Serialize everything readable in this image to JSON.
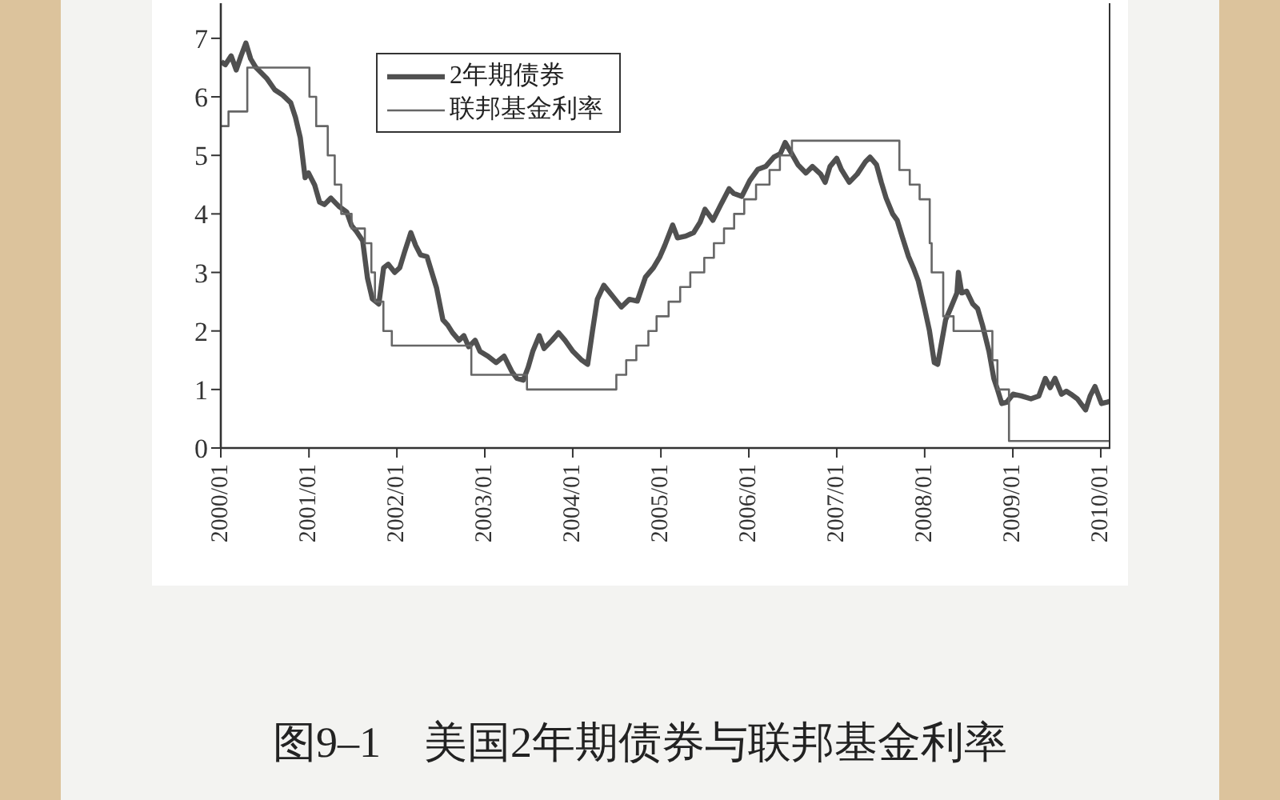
{
  "chart_data": {
    "type": "line",
    "title": "图9–1　美国2年期债券与联邦基金利率",
    "xlim": [
      "2000-01-01",
      "2010-02-10"
    ],
    "xticks": [
      {
        "value": "2000-01",
        "label": "2000/01"
      },
      {
        "value": "2001-01",
        "label": "2001/01"
      },
      {
        "value": "2002-01",
        "label": "2002/01"
      },
      {
        "value": "2003-01",
        "label": "2003/01"
      },
      {
        "value": "2004-01",
        "label": "2004/01"
      },
      {
        "value": "2005-01",
        "label": "2005/01"
      },
      {
        "value": "2006-01",
        "label": "2006/01"
      },
      {
        "value": "2007-01",
        "label": "2007/01"
      },
      {
        "value": "2008-01",
        "label": "2008/01"
      },
      {
        "value": "2009-01",
        "label": "2009/01"
      },
      {
        "value": "2010-01",
        "label": "2010/01"
      }
    ],
    "ylim": [
      0,
      7.6
    ],
    "yticks": [
      0,
      1,
      2,
      3,
      4,
      5,
      6,
      7
    ],
    "legend": "top left",
    "series": [
      {
        "name": "2年期债券",
        "color": "#505050",
        "x": [
          "2000-01-03",
          "2000-01-20",
          "2000-02-13",
          "2000-03-05",
          "2000-03-25",
          "2000-04-14",
          "2000-05-04",
          "2000-05-24",
          "2000-07-09",
          "2000-08-12",
          "2000-09-14",
          "2000-10-17",
          "2000-11-06",
          "2000-11-26",
          "2000-12-16",
          "2000-12-30",
          "2001-01-25",
          "2001-02-14",
          "2001-03-06",
          "2001-04-02",
          "2001-05-05",
          "2001-06-07",
          "2001-06-27",
          "2001-07-17",
          "2001-08-12",
          "2001-09-01",
          "2001-09-21",
          "2001-10-18",
          "2001-11-07",
          "2001-11-26",
          "2001-12-23",
          "2002-01-13",
          "2002-02-02",
          "2002-02-28",
          "2002-03-20",
          "2002-04-09",
          "2002-05-06",
          "2002-05-26",
          "2002-06-15",
          "2002-07-11",
          "2002-07-31",
          "2002-08-20",
          "2002-09-16",
          "2002-10-06",
          "2002-10-26",
          "2002-11-22",
          "2002-12-12",
          "2003-01-14",
          "2003-02-17",
          "2003-03-22",
          "2003-04-24",
          "2003-05-14",
          "2003-06-10",
          "2003-06-30",
          "2003-07-19",
          "2003-08-15",
          "2003-09-04",
          "2003-10-07",
          "2003-11-03",
          "2003-11-30",
          "2004-01-02",
          "2004-02-05",
          "2004-03-03",
          "2004-03-23",
          "2004-04-12",
          "2004-05-09",
          "2004-05-29",
          "2004-07-01",
          "2004-07-21",
          "2004-08-23",
          "2004-09-25",
          "2004-10-29",
          "2004-12-01",
          "2004-12-28",
          "2005-01-17",
          "2005-02-19",
          "2005-03-11",
          "2005-04-14",
          "2005-05-17",
          "2005-06-13",
          "2005-07-03",
          "2005-08-05",
          "2005-09-07",
          "2005-10-11",
          "2005-10-30",
          "2005-12-03",
          "2006-01-05",
          "2006-02-07",
          "2006-03-12",
          "2006-04-15",
          "2006-05-12",
          "2006-06-01",
          "2006-06-21",
          "2006-07-24",
          "2006-08-26",
          "2006-09-22",
          "2006-10-26",
          "2006-11-14",
          "2006-12-04",
          "2007-01-01",
          "2007-01-20",
          "2007-02-22",
          "2007-03-27",
          "2007-04-30",
          "2007-05-19",
          "2007-06-15",
          "2007-07-05",
          "2007-07-25",
          "2007-08-21",
          "2007-09-09",
          "2007-09-29",
          "2007-10-26",
          "2007-11-15",
          "2007-12-05",
          "2008-01-01",
          "2008-01-21",
          "2008-02-10",
          "2008-02-24",
          "2008-03-28",
          "2008-04-17",
          "2008-05-14",
          "2008-05-20",
          "2008-06-03",
          "2008-06-23",
          "2008-07-19",
          "2008-08-08",
          "2008-08-28",
          "2008-09-24",
          "2008-10-14",
          "2008-10-27",
          "2008-11-16",
          "2008-12-06",
          "2009-01-02",
          "2009-02-05",
          "2009-03-17",
          "2009-04-19",
          "2009-05-16",
          "2009-06-05",
          "2009-06-25",
          "2009-07-22",
          "2009-08-11",
          "2009-08-30",
          "2009-09-26",
          "2009-10-30",
          "2009-11-18",
          "2009-12-08",
          "2010-01-04",
          "2010-01-24",
          "2010-02-08"
        ],
        "values": [
          6.6,
          6.55,
          6.7,
          6.46,
          6.7,
          6.92,
          6.65,
          6.51,
          6.32,
          6.12,
          6.03,
          5.9,
          5.65,
          5.3,
          4.62,
          4.7,
          4.49,
          4.2,
          4.16,
          4.27,
          4.13,
          4.03,
          3.8,
          3.7,
          3.54,
          2.9,
          2.55,
          2.46,
          3.08,
          3.14,
          3.0,
          3.08,
          3.35,
          3.68,
          3.46,
          3.3,
          3.27,
          3.0,
          2.73,
          2.19,
          2.1,
          1.97,
          1.84,
          1.92,
          1.73,
          1.84,
          1.65,
          1.57,
          1.46,
          1.57,
          1.3,
          1.19,
          1.16,
          1.38,
          1.65,
          1.92,
          1.7,
          1.84,
          1.97,
          1.84,
          1.65,
          1.51,
          1.43,
          2.0,
          2.54,
          2.78,
          2.68,
          2.51,
          2.41,
          2.54,
          2.51,
          2.92,
          3.08,
          3.27,
          3.46,
          3.81,
          3.59,
          3.62,
          3.68,
          3.86,
          4.08,
          3.89,
          4.16,
          4.43,
          4.35,
          4.3,
          4.57,
          4.76,
          4.81,
          4.97,
          5.03,
          5.22,
          5.08,
          4.84,
          4.7,
          4.81,
          4.68,
          4.54,
          4.81,
          4.95,
          4.76,
          4.54,
          4.68,
          4.89,
          4.97,
          4.84,
          4.54,
          4.27,
          4.0,
          3.89,
          3.62,
          3.27,
          3.08,
          2.86,
          2.38,
          2.0,
          1.46,
          1.43,
          2.19,
          2.38,
          2.65,
          3.0,
          2.65,
          2.68,
          2.46,
          2.38,
          2.1,
          1.65,
          1.19,
          1.03,
          0.76,
          0.78,
          0.92,
          0.89,
          0.84,
          0.89,
          1.19,
          1.03,
          1.19,
          0.92,
          0.97,
          0.92,
          0.84,
          0.65,
          0.89,
          1.05,
          0.76,
          0.78,
          0.8
        ]
      },
      {
        "name": "联邦基金利率",
        "color": "#666666",
        "type": "step",
        "x": [
          "2000-01-01",
          "2000-02-02",
          "2000-04-20",
          "2001-01-03",
          "2001-01-31",
          "2001-03-20",
          "2001-04-18",
          "2001-05-15",
          "2001-06-27",
          "2001-08-21",
          "2001-09-17",
          "2001-10-02",
          "2001-11-06",
          "2001-12-11",
          "2002-11-06",
          "2003-06-25",
          "2004-06-30",
          "2004-08-10",
          "2004-09-21",
          "2004-11-10",
          "2004-12-14",
          "2005-02-02",
          "2005-03-22",
          "2005-05-03",
          "2005-06-30",
          "2005-08-09",
          "2005-09-20",
          "2005-11-01",
          "2005-12-13",
          "2006-01-31",
          "2006-03-28",
          "2006-05-10",
          "2006-06-29",
          "2007-09-18",
          "2007-10-31",
          "2007-12-11",
          "2008-01-22",
          "2008-01-30",
          "2008-03-18",
          "2008-04-30",
          "2008-10-08",
          "2008-10-29",
          "2008-12-16",
          "2010-02-10"
        ],
        "values": [
          5.5,
          5.75,
          6.5,
          6.0,
          5.5,
          5.0,
          4.5,
          4.0,
          3.75,
          3.5,
          3.0,
          2.5,
          2.0,
          1.75,
          1.25,
          1.0,
          1.25,
          1.5,
          1.75,
          2.0,
          2.25,
          2.5,
          2.75,
          3.0,
          3.25,
          3.5,
          3.75,
          4.0,
          4.25,
          4.5,
          4.75,
          5.0,
          5.25,
          4.75,
          4.5,
          4.25,
          3.5,
          3.0,
          2.25,
          2.0,
          1.5,
          1.0,
          0.12,
          0.12
        ]
      }
    ]
  }
}
